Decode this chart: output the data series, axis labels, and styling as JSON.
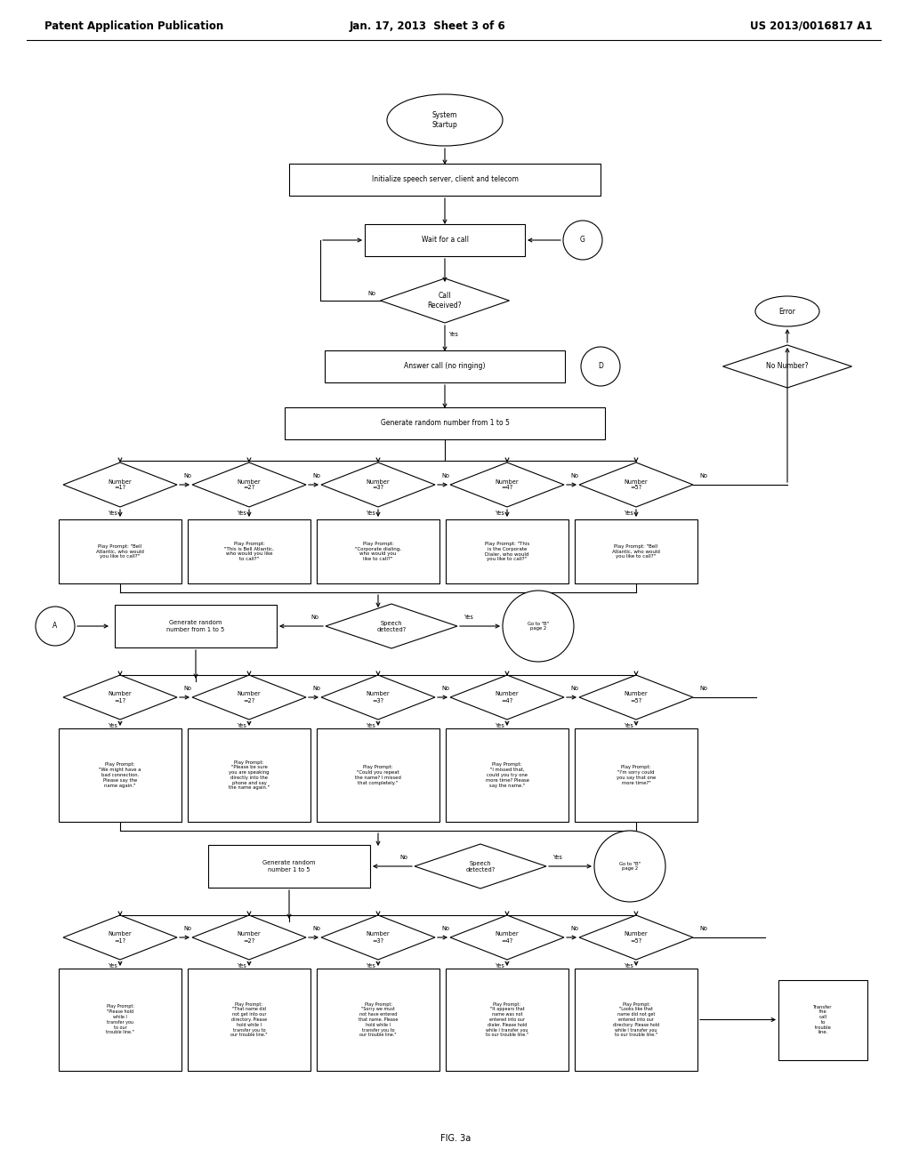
{
  "header_left": "Patent Application Publication",
  "header_mid": "Jan. 17, 2013  Sheet 3 of 6",
  "header_right": "US 2013/0016817 A1",
  "footer": "FIG. 3a",
  "bg_color": "#ffffff",
  "line_color": "#000000",
  "text_color": "#000000"
}
